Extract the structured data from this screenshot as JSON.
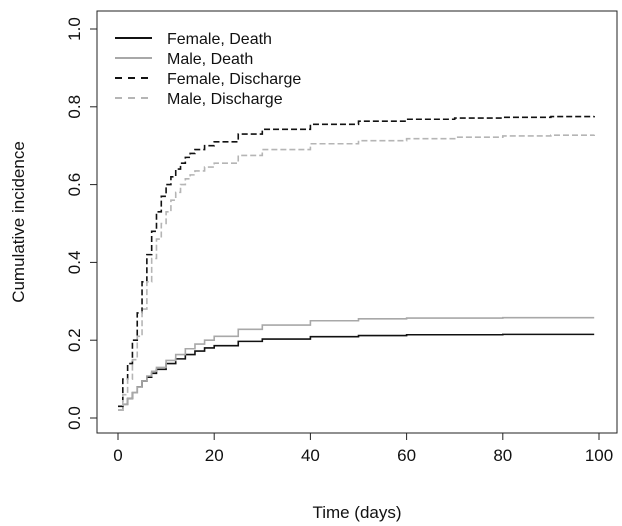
{
  "chart_data": {
    "type": "line",
    "title": "",
    "xlabel": "Time (days)",
    "ylabel": "Cumulative incidence",
    "xlim": [
      0,
      100
    ],
    "ylim": [
      0,
      1.0
    ],
    "x_ticks": [
      0,
      20,
      40,
      60,
      80,
      100
    ],
    "x_tick_labels": [
      "0",
      "20",
      "40",
      "60",
      "80",
      "100"
    ],
    "y_ticks": [
      0,
      0.2,
      0.4,
      0.6,
      0.8,
      1.0
    ],
    "y_tick_labels": [
      "0.0",
      "0.2",
      "0.4",
      "0.6",
      "0.8",
      "1.0"
    ],
    "grid": false,
    "legend_position": "top-left",
    "step": true,
    "series": [
      {
        "name": "Female, Death",
        "color": "#111111",
        "dash": "solid",
        "x": [
          0,
          1,
          2,
          3,
          4,
          5,
          6,
          7,
          8,
          10,
          12,
          14,
          16,
          18,
          20,
          25,
          30,
          40,
          50,
          60,
          80,
          99
        ],
        "y": [
          0.02,
          0.035,
          0.05,
          0.065,
          0.08,
          0.095,
          0.105,
          0.115,
          0.125,
          0.14,
          0.152,
          0.163,
          0.172,
          0.18,
          0.186,
          0.197,
          0.203,
          0.209,
          0.212,
          0.214,
          0.215,
          0.215
        ]
      },
      {
        "name": "Male, Death",
        "color": "#a8a8a8",
        "dash": "solid",
        "x": [
          0,
          1,
          2,
          3,
          4,
          5,
          6,
          7,
          8,
          10,
          12,
          14,
          16,
          18,
          20,
          25,
          30,
          40,
          50,
          60,
          80,
          99
        ],
        "y": [
          0.02,
          0.035,
          0.05,
          0.065,
          0.08,
          0.095,
          0.108,
          0.12,
          0.13,
          0.148,
          0.163,
          0.178,
          0.19,
          0.2,
          0.21,
          0.228,
          0.239,
          0.25,
          0.255,
          0.257,
          0.258,
          0.258
        ]
      },
      {
        "name": "Female, Discharge",
        "color": "#111111",
        "dash": "dashed",
        "x": [
          0,
          1,
          2,
          3,
          4,
          5,
          6,
          7,
          8,
          9,
          10,
          11,
          12,
          13,
          14,
          15,
          16,
          18,
          20,
          25,
          30,
          40,
          50,
          60,
          70,
          80,
          90,
          99
        ],
        "y": [
          0.03,
          0.1,
          0.14,
          0.2,
          0.27,
          0.35,
          0.42,
          0.48,
          0.53,
          0.57,
          0.6,
          0.62,
          0.64,
          0.655,
          0.67,
          0.68,
          0.69,
          0.7,
          0.71,
          0.73,
          0.742,
          0.755,
          0.763,
          0.768,
          0.771,
          0.773,
          0.775,
          0.776
        ]
      },
      {
        "name": "Male, Discharge",
        "color": "#b5b5b5",
        "dash": "dashed",
        "x": [
          0,
          1,
          2,
          3,
          4,
          5,
          6,
          7,
          8,
          9,
          10,
          11,
          12,
          13,
          14,
          15,
          16,
          18,
          20,
          25,
          30,
          40,
          50,
          60,
          70,
          80,
          90,
          99
        ],
        "y": [
          0.02,
          0.06,
          0.1,
          0.15,
          0.21,
          0.28,
          0.35,
          0.41,
          0.46,
          0.5,
          0.53,
          0.56,
          0.58,
          0.6,
          0.615,
          0.625,
          0.635,
          0.645,
          0.655,
          0.675,
          0.69,
          0.705,
          0.713,
          0.718,
          0.722,
          0.725,
          0.727,
          0.728
        ]
      }
    ]
  }
}
